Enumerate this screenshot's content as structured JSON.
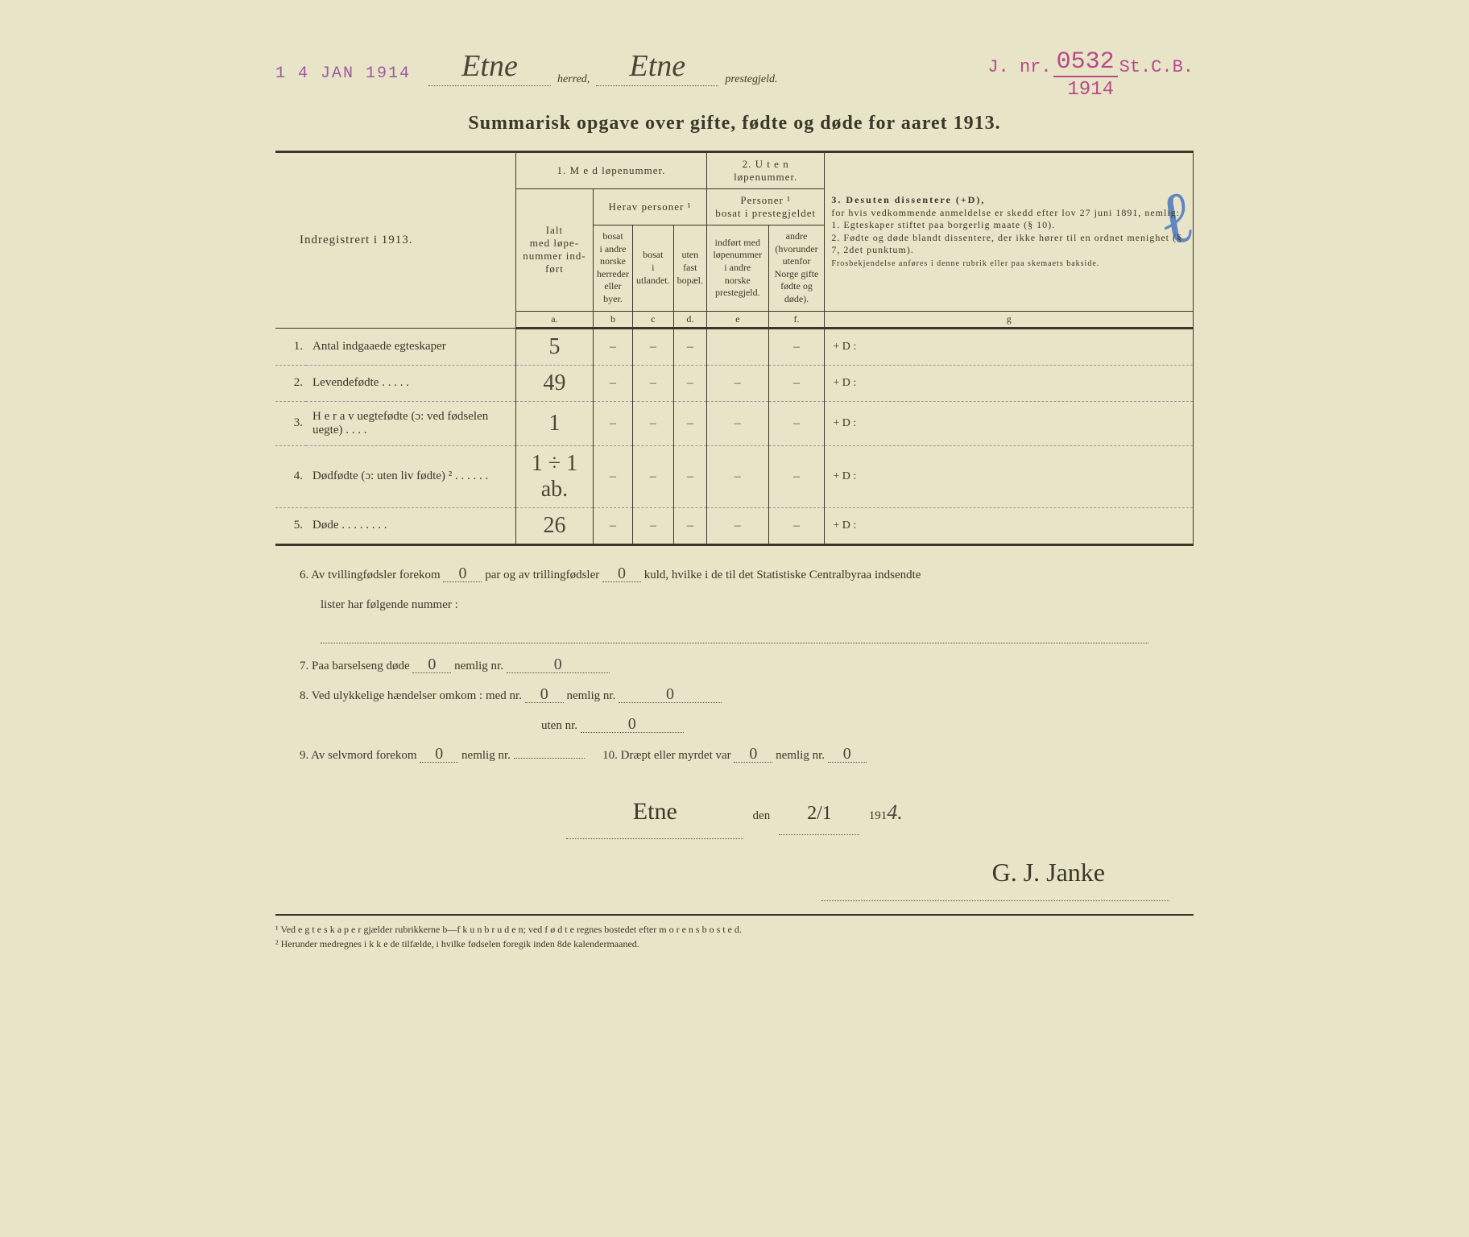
{
  "stamp_date": "1 4 JAN 1914",
  "herred": "Etne",
  "herred_label": "herred,",
  "prestegjeld": "Etne",
  "prestegjeld_label": "prestegjeld.",
  "jnr": {
    "prefix": "J. nr.",
    "number": "0532",
    "suffix": "St.C.B.",
    "year": "1914"
  },
  "title": "Summarisk opgave over gifte, fødte og døde for aaret 1913.",
  "col_indreg": "Indregistrert i 1913.",
  "group1": "1.  M e d  løpenummer.",
  "group2": "2.  U t e n  løpenummer.",
  "group3_title": "3.  Desuten dissentere (+D),",
  "group3_body": "for hvis vedkommende anmeldelse er skedd efter lov 27 juni 1891, nemlig:\n1. Egteskaper stiftet paa borgerlig maate (§ 10).\n2. Fødte og døde blandt dissentere, der ikke hører til en ordnet menighet (§ 7, 2det punktum).",
  "group3_tiny": "Frosbekjendelse anføres i denne rubrik eller paa skemaets bakside.",
  "sub_ialt": "Ialt\nmed løpe-\nnummer ind-\nført",
  "sub_herav": "Herav personer ¹",
  "sub_personer": "Personer ¹\nbosat i prestegjeldet",
  "col_b": "bosat\ni andre\nnorske\nherreder\neller\nbyer.",
  "col_c": "bosat\ni\nutlandet.",
  "col_d": "uten\nfast\nbopæl.",
  "col_e": "indført med\nløpenummer\ni andre\nnorske\nprestegjeld.",
  "col_f": "andre\n(hvorunder\nutenfor\nNorge gifte\nfødte og\ndøde).",
  "letters": {
    "a": "a.",
    "b": "b",
    "c": "c",
    "d": "d.",
    "e": "e",
    "f": "f.",
    "g": "g"
  },
  "rows": [
    {
      "n": "1.",
      "label": "Antal indgaaede egteskaper",
      "a": "5",
      "b": "–",
      "c": "–",
      "d": "–",
      "e": "",
      "f": "–",
      "g": "+ D :"
    },
    {
      "n": "2.",
      "label": "Levendefødte  .  .  .  .  .",
      "a": "49",
      "b": "–",
      "c": "–",
      "d": "–",
      "e": "–",
      "f": "–",
      "g": "+ D :"
    },
    {
      "n": "3.",
      "label": "H e r a v  uegtefødte (ɔ: ved fødselen uegte)  .  .  .  .",
      "a": "1",
      "b": "–",
      "c": "–",
      "d": "–",
      "e": "–",
      "f": "–",
      "g": "+ D :"
    },
    {
      "n": "4.",
      "label": "Dødfødte (ɔ: uten liv fødte) ²  .  .  .  .  .  .",
      "a": "1 ÷ 1 ab.",
      "b": "–",
      "c": "–",
      "d": "–",
      "e": "–",
      "f": "–",
      "g": "+ D :"
    },
    {
      "n": "5.",
      "label": "Døde .  .  .  .  .  .  .  .",
      "a": "26",
      "b": "–",
      "c": "–",
      "d": "–",
      "e": "–",
      "f": "–",
      "g": "+ D :"
    }
  ],
  "q6a": "6.   Av tvillingfødsler forekom",
  "q6_par": "0",
  "q6b": "par  og  av  trillingfødsler",
  "q6_kuld": "0",
  "q6c": "kuld, hvilke i de til det Statistiske Centralbyraa indsendte",
  "q6d": "lister har følgende nummer :",
  "q7a": "7.   Paa barselseng døde",
  "q7_v1": "0",
  "q7b": "nemlig nr.",
  "q7_v2": "0",
  "q8a": "8.   Ved ulykkelige hændelser omkom : med  nr.",
  "q8_v1": "0",
  "q8b": "nemlig nr.",
  "q8_v2": "0",
  "q8c": "uten nr.",
  "q8_v3": "0",
  "q9a": "9.   Av selvmord forekom",
  "q9_v1": "0",
  "q9b": "nemlig nr.",
  "q9_v2": "",
  "q10a": "10.   Dræpt eller myrdet var",
  "q10_v1": "0",
  "q10b": "nemlig nr.",
  "q10_v2": "0",
  "sig_place": "Etne",
  "sig_den": "den",
  "sig_date": "2/1",
  "sig_year_prefix": "191",
  "sig_year_hand": "4.",
  "signature": "G. J. Janke",
  "footnote1": "¹  Ved  e g t e s k a p e r  gjælder rubrikkerne b—f  k u n  b r u d e n;  ved  f ø d t e  regnes bostedet efter  m o r e n s  b o s t e d.",
  "footnote2": "²  Herunder medregnes  i k k e  de tilfælde, i hvilke fødselen foregik inden 8de kalendermaaned.",
  "blue_mark": "ℓ",
  "colors": {
    "paper": "#e8e4c8",
    "ink": "#3a3828",
    "purple_stamp": "#9a5aa0",
    "magenta_stamp": "#b84a8a",
    "blue_pencil": "#2a5fbf"
  }
}
